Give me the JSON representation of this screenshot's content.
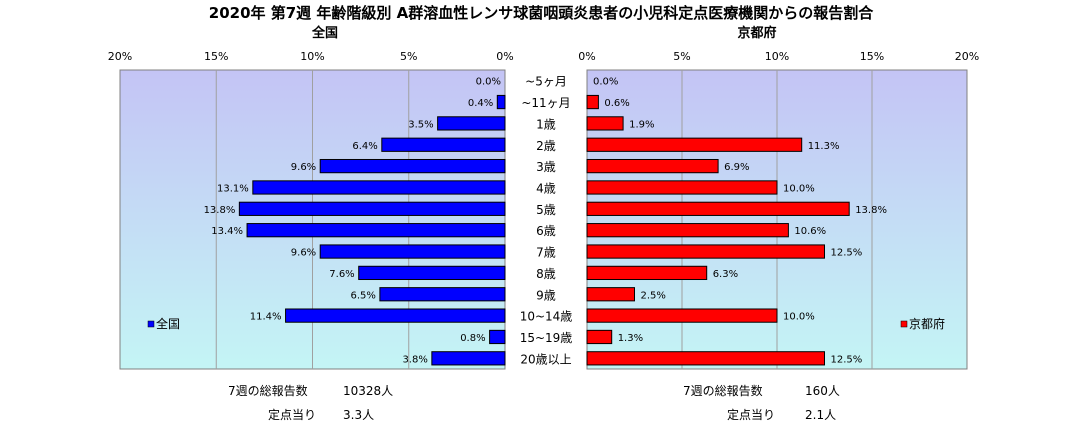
{
  "title": "2020年 第7週 年齢階級別 A群溶血性レンサ球菌咽頭炎患者の小児科定点医療機関からの報告割合",
  "colors": {
    "national_bar": "#0000ff",
    "kyoto_bar": "#ff0000",
    "plot_bg_top": "#c4c4f5",
    "plot_bg_bottom": "#c4f5f5"
  },
  "chart_data": {
    "type": "bar",
    "orientation": "horizontal-butterfly",
    "categories": [
      "~5ヶ月",
      "~11ヶ月",
      "1歳",
      "2歳",
      "3歳",
      "4歳",
      "5歳",
      "6歳",
      "7歳",
      "8歳",
      "9歳",
      "10~14歳",
      "15~19歳",
      "20歳以上"
    ],
    "panels": [
      {
        "title": "全国",
        "legend": "全国",
        "direction": "left",
        "xlim": [
          0,
          20
        ],
        "ticks": [
          "20%",
          "15%",
          "10%",
          "5%",
          "0%"
        ],
        "values": [
          0.0,
          0.4,
          3.5,
          6.4,
          9.6,
          13.1,
          13.8,
          13.4,
          9.6,
          7.6,
          6.5,
          11.4,
          0.8,
          3.8
        ],
        "labels": [
          "0.0%",
          "0.4%",
          "3.5%",
          "6.4%",
          "9.6%",
          "13.1%",
          "13.8%",
          "13.4%",
          "9.6%",
          "7.6%",
          "6.5%",
          "11.4%",
          "0.8%",
          "3.8%"
        ],
        "legend_position": "bottom-left"
      },
      {
        "title": "京都府",
        "legend": "京都府",
        "direction": "right",
        "xlim": [
          0,
          20
        ],
        "ticks": [
          "0%",
          "5%",
          "10%",
          "15%",
          "20%"
        ],
        "values": [
          0.0,
          0.6,
          1.9,
          11.3,
          6.9,
          10.0,
          13.8,
          10.6,
          12.5,
          6.3,
          2.5,
          10.0,
          1.3,
          12.5
        ],
        "labels": [
          "0.0%",
          "0.6%",
          "1.9%",
          "11.3%",
          "6.9%",
          "10.0%",
          "13.8%",
          "10.6%",
          "12.5%",
          "6.3%",
          "2.5%",
          "10.0%",
          "1.3%",
          "12.5%"
        ],
        "legend_position": "bottom-right"
      }
    ],
    "grid": "vertical"
  },
  "footer": {
    "national": {
      "total_label": "7週の総報告数",
      "total_value": "10328人",
      "per_label": "定点当り",
      "per_value": "3.3人"
    },
    "kyoto": {
      "total_label": "7週の総報告数",
      "total_value": "160人",
      "per_label": "定点当り",
      "per_value": "2.1人"
    }
  }
}
